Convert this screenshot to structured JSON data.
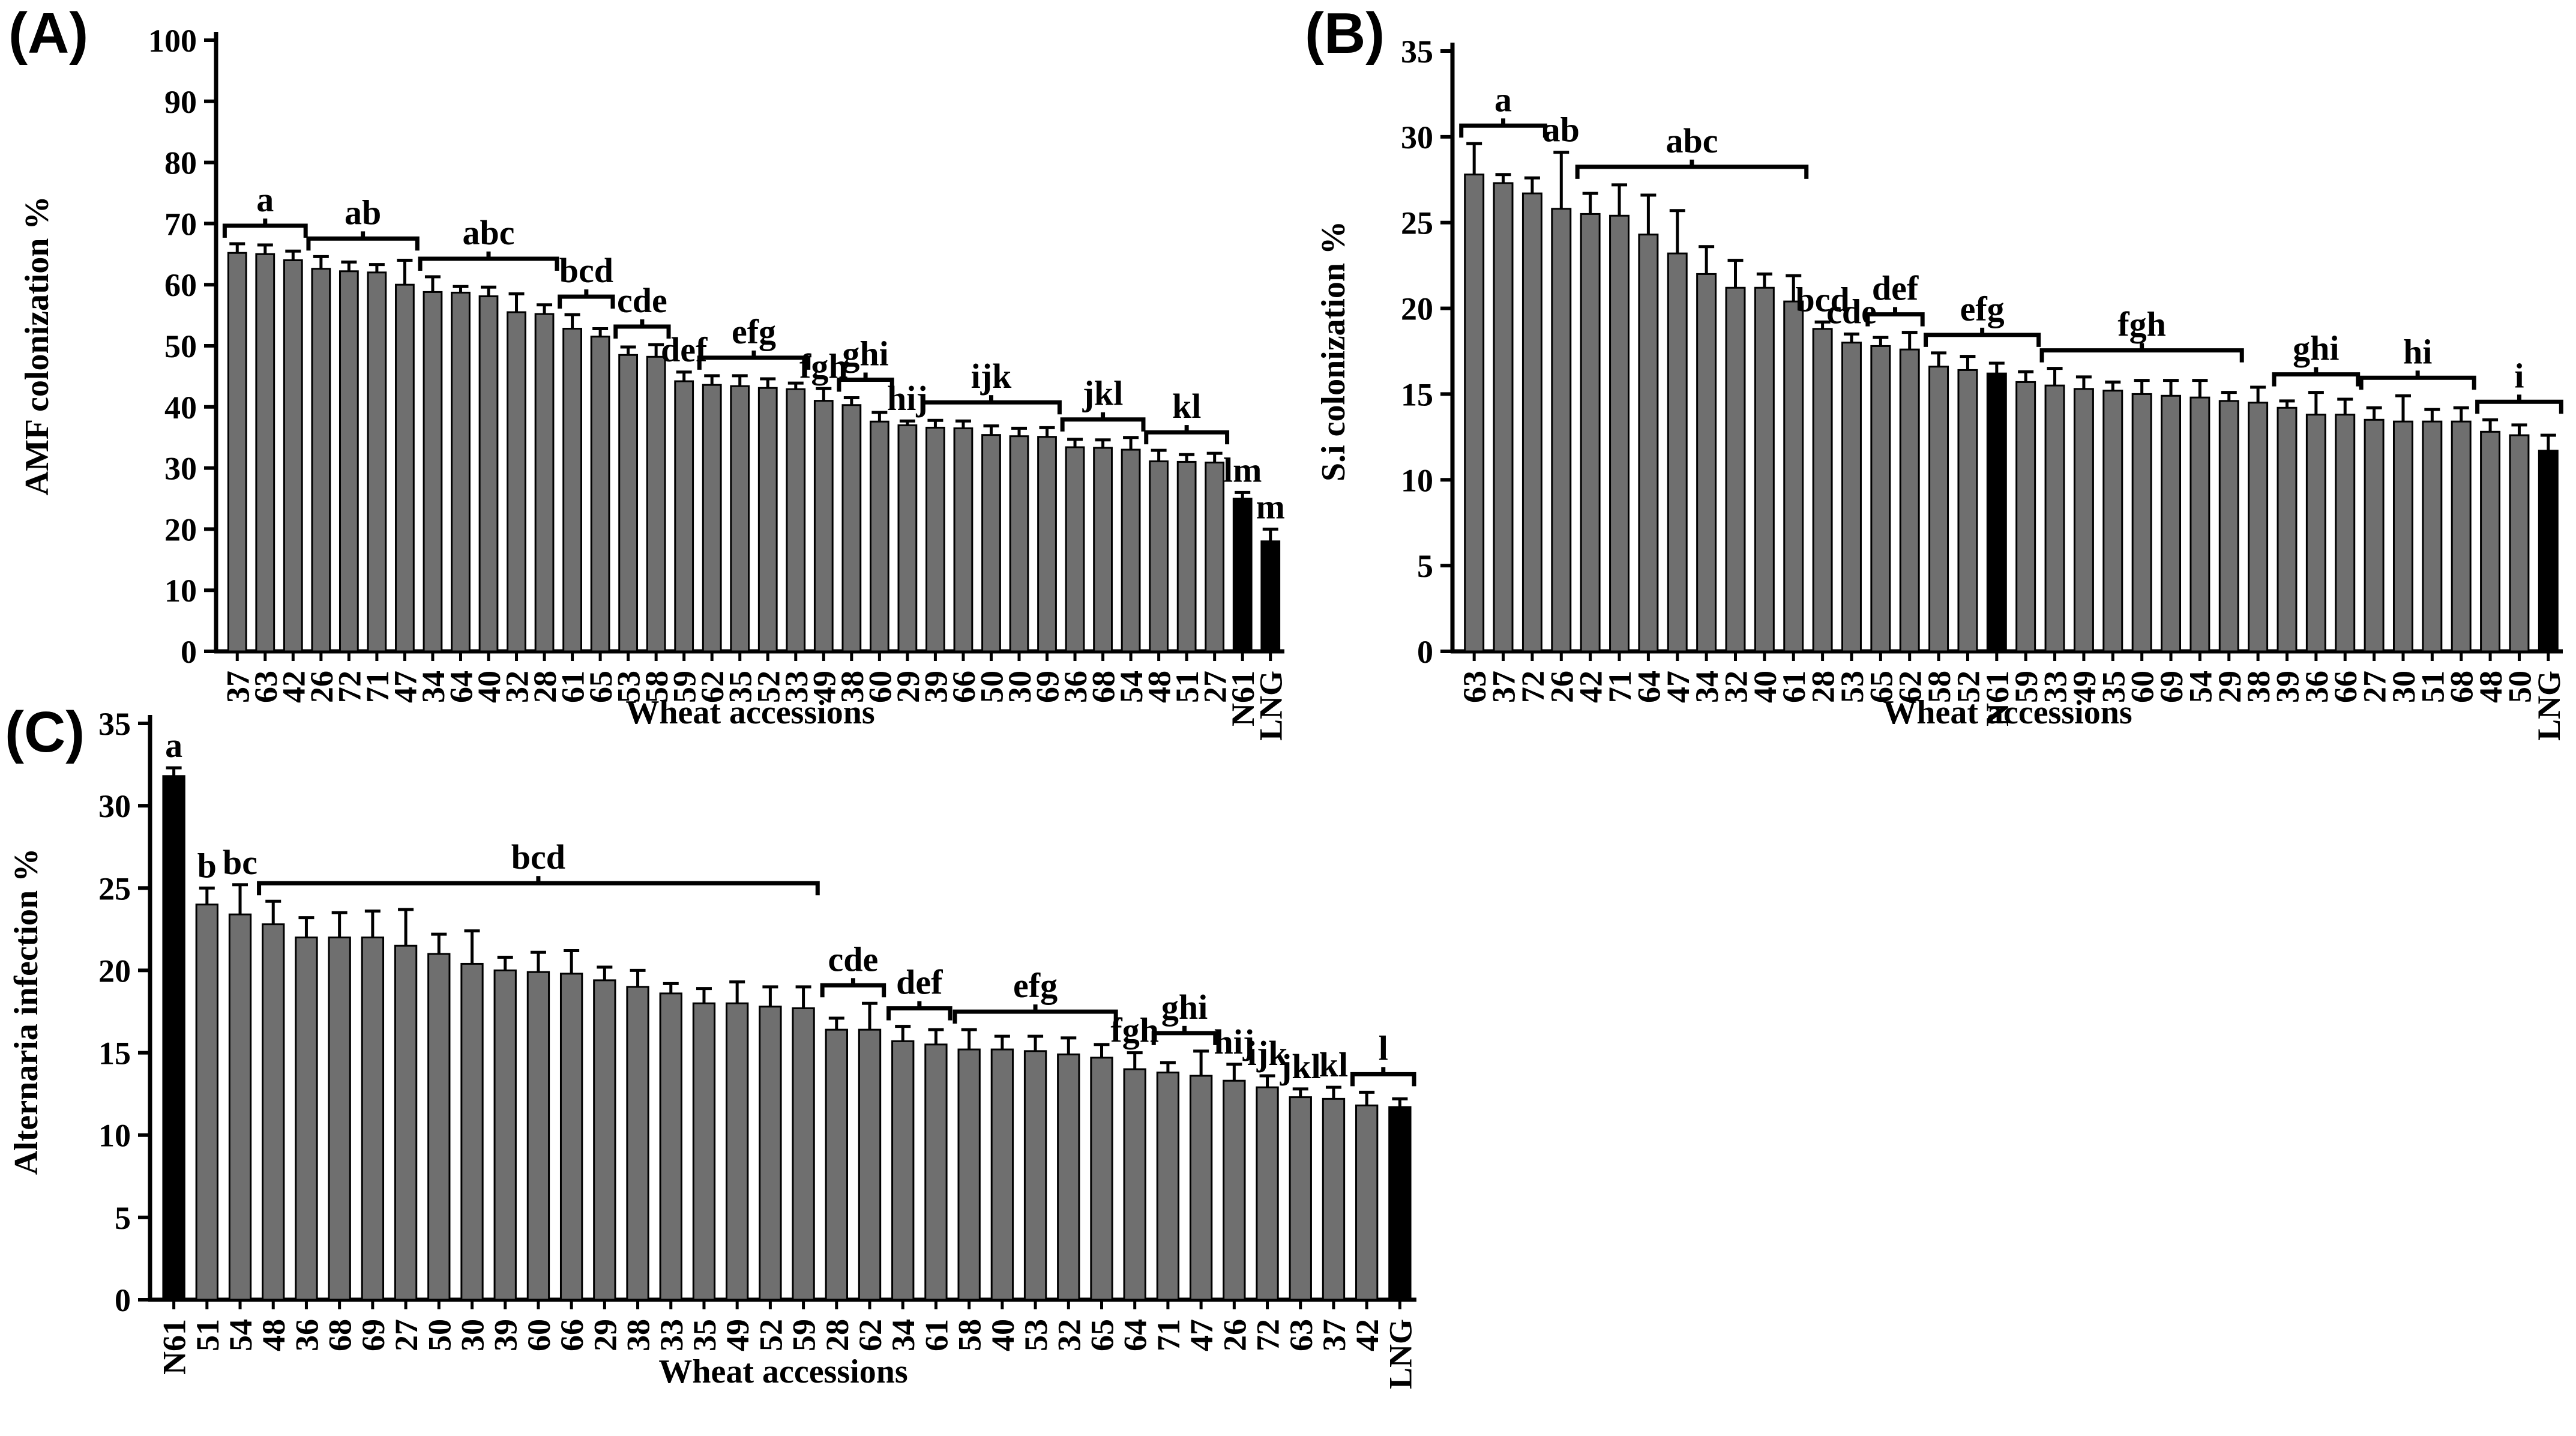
{
  "figure": {
    "background": "#ffffff",
    "bar_fill_color": "#6f6f6f",
    "bar_edge_color": "#000000",
    "control_bar_color": "#000000",
    "text_color": "#000000"
  },
  "panels": [
    {
      "panel_label": "(A)"
    },
    {
      "panel_label": "(B)"
    },
    {
      "panel_label": "(C)"
    }
  ],
  "chart_data": [
    {
      "type": "bar",
      "title": "",
      "xlabel": "Wheat accessions",
      "ylabel": "AMF colonization %",
      "ylim": [
        0,
        100
      ],
      "ytick_step": 10,
      "grid": false,
      "legend": "none",
      "categories": [
        "37",
        "63",
        "42",
        "26",
        "72",
        "71",
        "47",
        "34",
        "64",
        "40",
        "32",
        "28",
        "61",
        "65",
        "53",
        "58",
        "59",
        "62",
        "35",
        "52",
        "33",
        "49",
        "38",
        "60",
        "29",
        "39",
        "66",
        "50",
        "30",
        "69",
        "36",
        "68",
        "54",
        "48",
        "51",
        "27",
        "N61",
        "LNG"
      ],
      "values": [
        65.2,
        65.0,
        64.0,
        62.6,
        62.2,
        62.0,
        60.0,
        58.8,
        58.7,
        58.1,
        55.5,
        55.2,
        52.8,
        51.5,
        48.5,
        48.2,
        44.2,
        43.6,
        43.4,
        43.1,
        42.9,
        41.0,
        40.3,
        37.6,
        37.0,
        36.6,
        36.5,
        35.4,
        35.2,
        35.1,
        33.4,
        33.3,
        33.0,
        31.1,
        31.0,
        30.9,
        25.0,
        18.0
      ],
      "errors": [
        1.5,
        1.5,
        1.5,
        2.0,
        1.5,
        1.3,
        4.0,
        2.5,
        1.0,
        1.5,
        3.0,
        1.5,
        2.3,
        1.3,
        1.3,
        2.0,
        1.5,
        1.5,
        1.7,
        1.5,
        1.0,
        2.0,
        1.2,
        1.5,
        0.7,
        1.2,
        1.2,
        1.5,
        1.3,
        1.5,
        1.3,
        1.3,
        2.0,
        1.8,
        1.2,
        1.5,
        1.0,
        2.0
      ],
      "black_bar_indices": [
        36,
        37
      ],
      "group_labels": [
        {
          "label": "a",
          "start": 0,
          "end": 2,
          "bracket": true
        },
        {
          "label": "ab",
          "start": 3,
          "end": 6,
          "bracket": true
        },
        {
          "label": "abc",
          "start": 7,
          "end": 11,
          "bracket": true
        },
        {
          "label": "bcd",
          "start": 12,
          "end": 13,
          "bracket": true
        },
        {
          "label": "cde",
          "start": 14,
          "end": 15,
          "bracket": true
        },
        {
          "label": "def",
          "start": 16,
          "end": 16,
          "bracket": false
        },
        {
          "label": "efg",
          "start": 17,
          "end": 20,
          "bracket": true
        },
        {
          "label": "fgh",
          "start": 21,
          "end": 21,
          "bracket": false
        },
        {
          "label": "ghi",
          "start": 22,
          "end": 23,
          "bracket": true
        },
        {
          "label": "hij",
          "start": 24,
          "end": 24,
          "bracket": false
        },
        {
          "label": "ijk",
          "start": 25,
          "end": 29,
          "bracket": true
        },
        {
          "label": "jkl",
          "start": 30,
          "end": 32,
          "bracket": true
        },
        {
          "label": "kl",
          "start": 33,
          "end": 35,
          "bracket": true
        },
        {
          "label": "lm",
          "start": 36,
          "end": 36,
          "bracket": false
        },
        {
          "label": "m",
          "start": 37,
          "end": 37,
          "bracket": false
        }
      ]
    },
    {
      "type": "bar",
      "title": "",
      "xlabel": "Wheat accessions",
      "ylabel": "S.i colonization %",
      "ylim": [
        0,
        35
      ],
      "ytick_step": 5,
      "grid": false,
      "legend": "none",
      "categories": [
        "63",
        "37",
        "72",
        "26",
        "42",
        "71",
        "64",
        "47",
        "34",
        "32",
        "40",
        "61",
        "28",
        "53",
        "65",
        "62",
        "58",
        "52",
        "N61",
        "59",
        "33",
        "49",
        "35",
        "60",
        "69",
        "54",
        "29",
        "38",
        "39",
        "36",
        "66",
        "27",
        "30",
        "51",
        "68",
        "48",
        "50",
        "LNG"
      ],
      "values": [
        27.8,
        27.3,
        26.7,
        25.8,
        25.5,
        25.4,
        24.3,
        23.2,
        22.0,
        21.2,
        21.2,
        20.4,
        18.8,
        18.0,
        17.8,
        17.6,
        16.6,
        16.4,
        16.2,
        15.7,
        15.5,
        15.3,
        15.2,
        15.0,
        14.9,
        14.8,
        14.6,
        14.5,
        14.2,
        13.8,
        13.8,
        13.5,
        13.4,
        13.4,
        13.4,
        12.8,
        12.6,
        11.7
      ],
      "errors": [
        1.8,
        0.5,
        0.9,
        3.3,
        1.2,
        1.8,
        2.3,
        2.5,
        1.6,
        1.6,
        0.8,
        1.5,
        0.4,
        0.5,
        0.5,
        1.0,
        0.8,
        0.8,
        0.6,
        0.6,
        1.0,
        0.7,
        0.5,
        0.8,
        0.9,
        1.0,
        0.5,
        0.9,
        0.4,
        1.3,
        0.9,
        0.7,
        1.5,
        0.7,
        0.8,
        0.7,
        0.6,
        0.9
      ],
      "black_bar_indices": [
        18,
        37
      ],
      "group_labels": [
        {
          "label": "a",
          "start": 0,
          "end": 2,
          "bracket": true
        },
        {
          "label": "ab",
          "start": 3,
          "end": 3,
          "bracket": false
        },
        {
          "label": "abc",
          "start": 4,
          "end": 11,
          "bracket": true
        },
        {
          "label": "bcd",
          "start": 12,
          "end": 12,
          "bracket": false
        },
        {
          "label": "cde",
          "start": 13,
          "end": 13,
          "bracket": false
        },
        {
          "label": "def",
          "start": 14,
          "end": 15,
          "bracket": true
        },
        {
          "label": "efg",
          "start": 16,
          "end": 19,
          "bracket": true
        },
        {
          "label": "fgh",
          "start": 20,
          "end": 26,
          "bracket": true
        },
        {
          "label": "ghi",
          "start": 28,
          "end": 30,
          "bracket": true
        },
        {
          "label": "hi",
          "start": 31,
          "end": 34,
          "bracket": true
        },
        {
          "label": "i",
          "start": 35,
          "end": 37,
          "bracket": true
        }
      ]
    },
    {
      "type": "bar",
      "title": "",
      "xlabel": "Wheat accessions",
      "ylabel": "Alternaria infection %",
      "ylim": [
        0,
        35
      ],
      "ytick_step": 5,
      "grid": false,
      "legend": "none",
      "categories": [
        "N61",
        "51",
        "54",
        "48",
        "36",
        "68",
        "69",
        "27",
        "50",
        "30",
        "39",
        "60",
        "66",
        "29",
        "38",
        "33",
        "35",
        "49",
        "52",
        "59",
        "28",
        "62",
        "34",
        "61",
        "58",
        "40",
        "53",
        "32",
        "65",
        "64",
        "71",
        "47",
        "26",
        "72",
        "63",
        "37",
        "42",
        "LNG"
      ],
      "values": [
        31.8,
        24.0,
        23.4,
        22.8,
        22.0,
        22.0,
        22.0,
        21.5,
        21.0,
        20.4,
        20.0,
        19.9,
        19.8,
        19.4,
        19.0,
        18.6,
        18.0,
        18.0,
        17.8,
        17.7,
        16.4,
        16.4,
        15.7,
        15.5,
        15.2,
        15.2,
        15.1,
        14.9,
        14.7,
        14.0,
        13.8,
        13.6,
        13.3,
        12.9,
        12.3,
        12.2,
        11.8,
        11.7
      ],
      "errors": [
        0.5,
        1.0,
        1.8,
        1.4,
        1.2,
        1.5,
        1.6,
        2.2,
        1.2,
        2.0,
        0.8,
        1.2,
        1.4,
        0.8,
        1.0,
        0.6,
        0.9,
        1.3,
        1.2,
        1.3,
        0.7,
        1.6,
        0.9,
        0.9,
        1.2,
        0.8,
        0.9,
        1.0,
        0.8,
        1.0,
        0.6,
        1.5,
        1.0,
        0.7,
        0.5,
        0.7,
        0.8,
        0.5
      ],
      "black_bar_indices": [
        0,
        37
      ],
      "group_labels": [
        {
          "label": "a",
          "start": 0,
          "end": 0,
          "bracket": false
        },
        {
          "label": "b",
          "start": 1,
          "end": 1,
          "bracket": false
        },
        {
          "label": "bc",
          "start": 2,
          "end": 2,
          "bracket": false
        },
        {
          "label": "bcd",
          "start": 3,
          "end": 19,
          "bracket": true
        },
        {
          "label": "cde",
          "start": 20,
          "end": 21,
          "bracket": true
        },
        {
          "label": "def",
          "start": 22,
          "end": 23,
          "bracket": true
        },
        {
          "label": "efg",
          "start": 24,
          "end": 28,
          "bracket": true
        },
        {
          "label": "fgh",
          "start": 29,
          "end": 29,
          "bracket": false
        },
        {
          "label": "ghi",
          "start": 30,
          "end": 31,
          "bracket": true
        },
        {
          "label": "hij",
          "start": 32,
          "end": 32,
          "bracket": false
        },
        {
          "label": "ijk",
          "start": 33,
          "end": 33,
          "bracket": false
        },
        {
          "label": "jkl",
          "start": 34,
          "end": 34,
          "bracket": false
        },
        {
          "label": "kl",
          "start": 35,
          "end": 35,
          "bracket": false
        },
        {
          "label": "l",
          "start": 36,
          "end": 37,
          "bracket": true
        }
      ]
    }
  ]
}
